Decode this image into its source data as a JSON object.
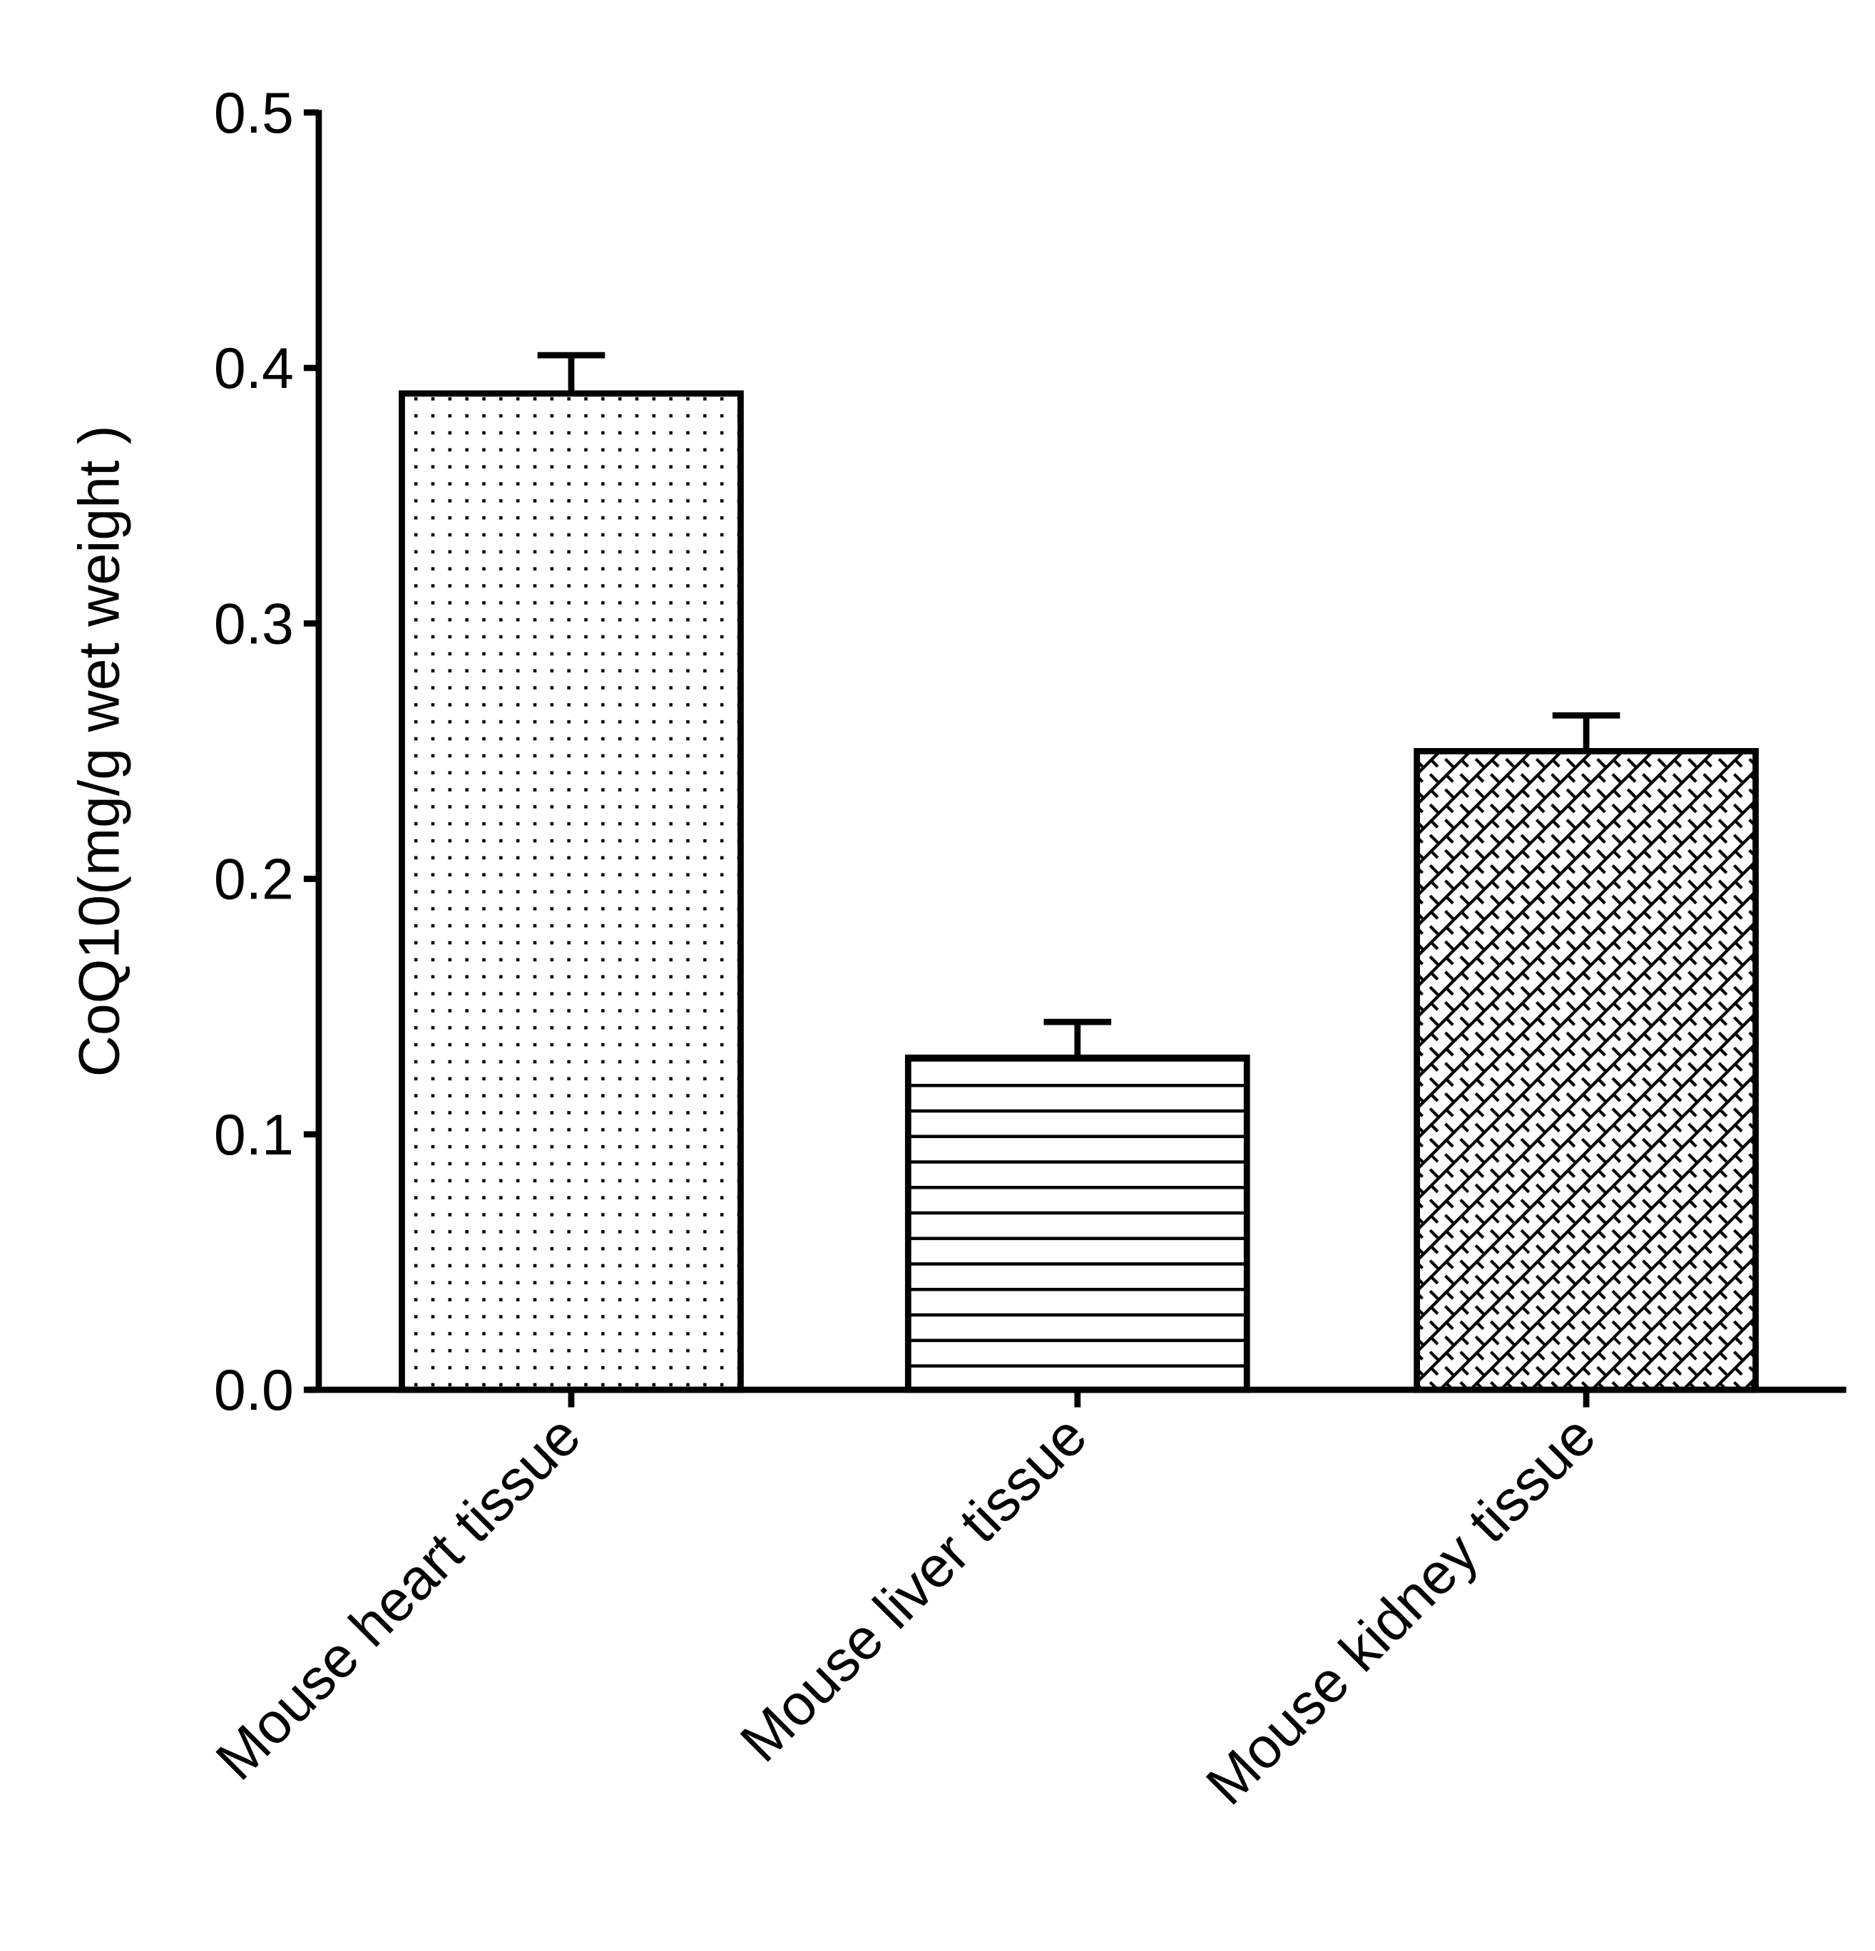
{
  "chart_data": {
    "type": "bar",
    "title": "",
    "xlabel": "",
    "ylabel": "CoQ10(mg/g wet weight )",
    "ylim": [
      0,
      0.5
    ],
    "yticks": [
      "0.0",
      "0.1",
      "0.2",
      "0.3",
      "0.4",
      "0.5"
    ],
    "categories": [
      "Mouse heart tissue",
      "Mouse liver tissue",
      "Mouse kidney tissue"
    ],
    "values": [
      0.39,
      0.13,
      0.25
    ],
    "error_upper": [
      0.015,
      0.014,
      0.014
    ],
    "fill_patterns": [
      "dots",
      "horizontal-lines",
      "diagonal-brick"
    ],
    "grid": false,
    "colors": {
      "stroke": "#000000",
      "fill": "#ffffff"
    }
  }
}
